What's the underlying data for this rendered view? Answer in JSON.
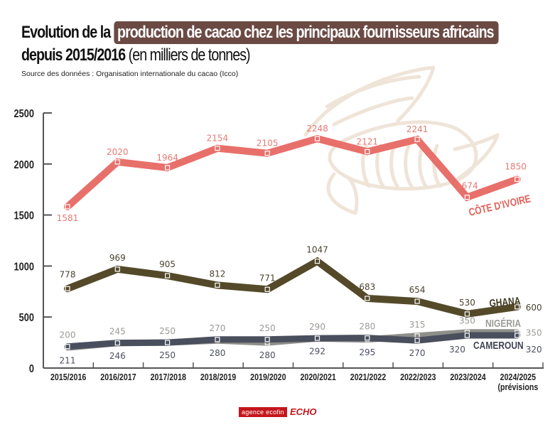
{
  "title": {
    "prefix": "Evolution de la",
    "highlight": "production de cacao chez les principaux fournisseurs africains",
    "line2_bold": "depuis 2015/2016",
    "line2_light": "(en milliers de tonnes)"
  },
  "source": "Source des données : Organisation internationale du cacao (Icco)",
  "logo": {
    "agency": "agence ecofin",
    "partner": "ECHO"
  },
  "colors": {
    "title_highlight": "#6b4a44",
    "cote_divoire": "#e8706b",
    "ghana": "#544a2a",
    "nigeria": "#8e8e8a",
    "cameroun": "#4a4f5e",
    "watermark": "#efe4d8"
  },
  "chart_data": {
    "type": "line",
    "title": "Evolution de la production de cacao chez les principaux fournisseurs africains depuis 2015/2016 (en milliers de tonnes)",
    "xlabel": "",
    "ylabel": "milliers de tonnes",
    "ylim": [
      0,
      2500
    ],
    "yticks": [
      0,
      500,
      1000,
      1500,
      2000,
      2500
    ],
    "grid": false,
    "legend": "inline-right",
    "categories": [
      "2015/2016",
      "2016/2017",
      "2017/2018",
      "2018/2019",
      "2019/2020",
      "2020/2021",
      "2021/2022",
      "2022/2023",
      "2023/2024",
      "2024/2025"
    ],
    "last_category_note": "(prévisions",
    "series": [
      {
        "name": "CÔTE D'IVOIRE",
        "key": "cote_divoire",
        "values": [
          1581,
          2020,
          1964,
          2154,
          2105,
          2248,
          2121,
          2241,
          1674,
          1850
        ]
      },
      {
        "name": "GHANA",
        "key": "ghana",
        "values": [
          778,
          969,
          905,
          812,
          771,
          1047,
          683,
          654,
          530,
          600
        ]
      },
      {
        "name": "NIGÉRIA",
        "key": "nigeria",
        "values": [
          200,
          245,
          250,
          270,
          250,
          290,
          280,
          315,
          350,
          350
        ]
      },
      {
        "name": "CAMEROUN",
        "key": "cameroun",
        "values": [
          211,
          246,
          250,
          280,
          280,
          292,
          295,
          270,
          320,
          320
        ]
      }
    ]
  }
}
